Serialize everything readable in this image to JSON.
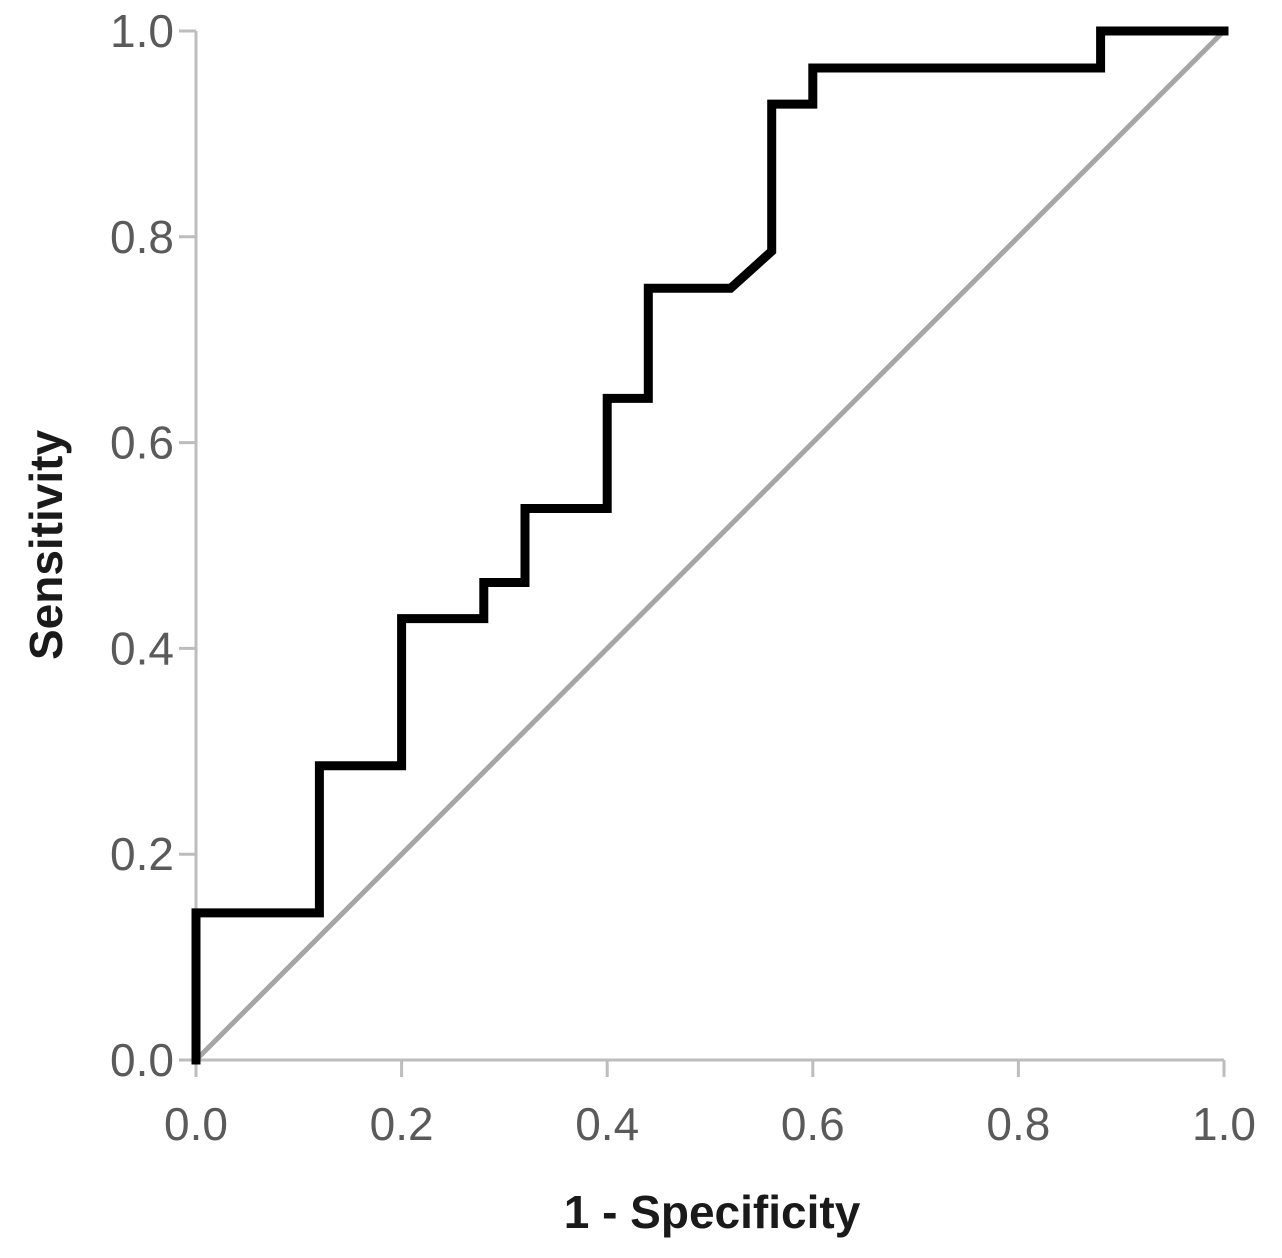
{
  "chart_data": {
    "type": "line",
    "title": "",
    "xlabel": "1 - Specificity",
    "ylabel": "Sensitivity",
    "xlim": [
      0,
      1
    ],
    "ylim": [
      0,
      1
    ],
    "x_ticks": [
      "0.0",
      "0.2",
      "0.4",
      "0.6",
      "0.8",
      "1.0"
    ],
    "y_ticks": [
      "0.0",
      "0.2",
      "0.4",
      "0.6",
      "0.8",
      "1.0"
    ],
    "grid": false,
    "legend": "none",
    "series": [
      {
        "kind": "roc-curve",
        "color": "#000000",
        "x": [
          0.0,
          0.0,
          0.12,
          0.12,
          0.2,
          0.2,
          0.28,
          0.28,
          0.32,
          0.32,
          0.4,
          0.4,
          0.44,
          0.44,
          0.52,
          0.56,
          0.56,
          0.6,
          0.6,
          0.88,
          0.88,
          1.0
        ],
        "y": [
          0.0,
          0.143,
          0.143,
          0.286,
          0.286,
          0.429,
          0.429,
          0.464,
          0.464,
          0.536,
          0.536,
          0.643,
          0.643,
          0.75,
          0.75,
          0.786,
          0.929,
          0.929,
          0.964,
          0.964,
          1.0,
          1.0
        ]
      },
      {
        "kind": "reference-line",
        "color": "#a6a6a6",
        "x": [
          0.0,
          1.0
        ],
        "y": [
          0.0,
          1.0
        ]
      }
    ]
  }
}
